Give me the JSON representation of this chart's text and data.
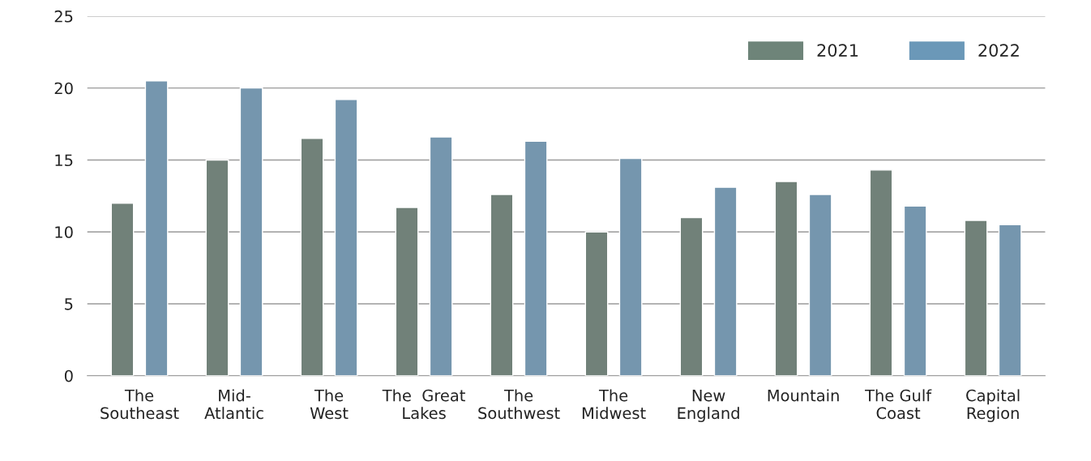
{
  "chart_data": {
    "type": "bar",
    "categories": [
      "The\nSoutheast",
      "Mid-\nAtlantic",
      "The\nWest",
      "The  Great\nLakes",
      "The\nSouthwest",
      "The\nMidwest",
      "New\nEngland",
      "Mountain",
      "The Gulf\nCoast",
      "Capital\nRegion"
    ],
    "series": [
      {
        "name": "2021",
        "color": "#6e8479",
        "values": [
          12.0,
          15.0,
          16.5,
          11.7,
          12.6,
          10.0,
          11.0,
          13.5,
          14.3,
          10.8
        ]
      },
      {
        "name": "2022",
        "color": "#6b98b8",
        "values": [
          20.5,
          20.0,
          19.2,
          16.6,
          16.3,
          15.1,
          13.1,
          12.6,
          11.8,
          10.5
        ]
      }
    ],
    "ylim": [
      0,
      25
    ],
    "yticks": [
      0,
      5,
      10,
      15,
      20,
      25
    ],
    "grid": "y",
    "legend": "top right"
  }
}
